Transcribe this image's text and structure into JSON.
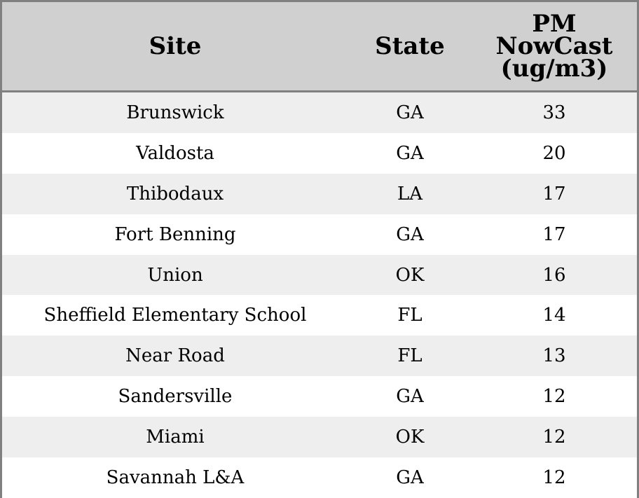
{
  "colors": {
    "header_bg": "#d0d0d0",
    "row_alt_bg": "#eeeeee",
    "row_bg": "#ffffff",
    "border": "#808080"
  },
  "chart_data": {
    "type": "table",
    "columns": [
      "Site",
      "State",
      "PM NowCast (ug/m3)"
    ],
    "column_header_lines": {
      "site": "Site",
      "state": "State",
      "pm": [
        "PM",
        "NowCast",
        "(ug/m3)"
      ]
    },
    "rows": [
      {
        "site": "Brunswick",
        "state": "GA",
        "pm": 33
      },
      {
        "site": "Valdosta",
        "state": "GA",
        "pm": 20
      },
      {
        "site": "Thibodaux",
        "state": "LA",
        "pm": 17
      },
      {
        "site": "Fort Benning",
        "state": "GA",
        "pm": 17
      },
      {
        "site": "Union",
        "state": "OK",
        "pm": 16
      },
      {
        "site": "Sheffield Elementary School",
        "state": "FL",
        "pm": 14
      },
      {
        "site": "Near Road",
        "state": "FL",
        "pm": 13
      },
      {
        "site": "Sandersville",
        "state": "GA",
        "pm": 12
      },
      {
        "site": "Miami",
        "state": "OK",
        "pm": 12
      },
      {
        "site": "Savannah L&A",
        "state": "GA",
        "pm": 12
      }
    ]
  }
}
